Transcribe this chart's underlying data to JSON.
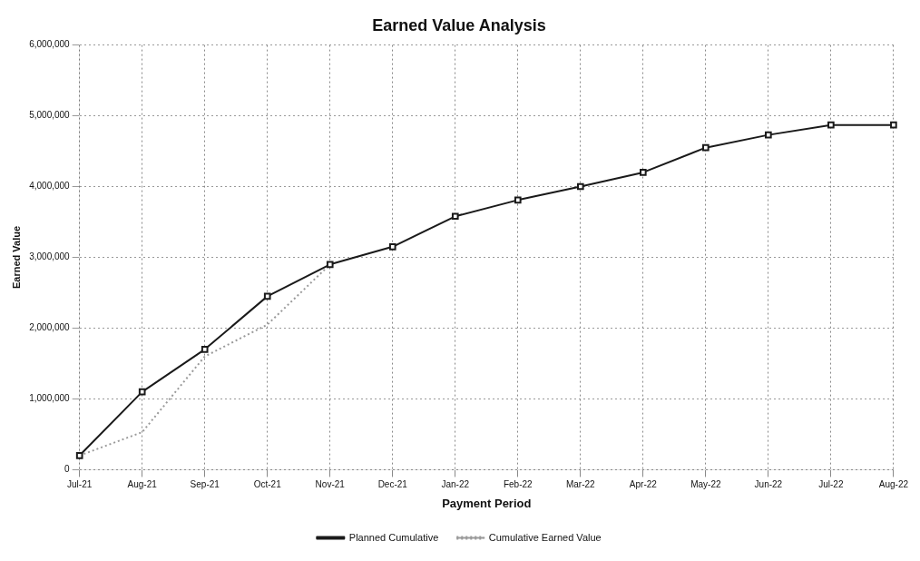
{
  "chart_data": {
    "type": "line",
    "title": "Earned Value Analysis",
    "xlabel": "Payment Period",
    "ylabel": "Earned Value",
    "categories": [
      "Jul-21",
      "Aug-21",
      "Sep-21",
      "Oct-21",
      "Nov-21",
      "Dec-21",
      "Jan-22",
      "Feb-22",
      "Mar-22",
      "Apr-22",
      "May-22",
      "Jun-22",
      "Jul-22",
      "Aug-22"
    ],
    "series": [
      {
        "name": "Planned Cumulative",
        "color": "#1a1a1a",
        "marker": "square",
        "line_style": "solid",
        "values": [
          200000,
          1100000,
          1700000,
          2450000,
          2900000,
          3150000,
          3580000,
          3810000,
          4000000,
          4200000,
          4550000,
          4730000,
          4870000,
          4870000
        ]
      },
      {
        "name": "Cumulative Earned Value",
        "color": "#9a9a9a",
        "marker": "none",
        "line_style": "dotted",
        "values": [
          200000,
          530000,
          1600000,
          2050000,
          2900000,
          null,
          null,
          null,
          null,
          null,
          null,
          null,
          null,
          null
        ]
      }
    ],
    "ylim": [
      0,
      6000000
    ],
    "yticks": [
      0,
      {
        "value": 1000000,
        "label": "1,000,000"
      },
      {
        "value": 2000000,
        "label": "2,000,000"
      },
      {
        "value": 3000000,
        "label": "3,000,000"
      },
      {
        "value": 4000000,
        "label": "4,000,000"
      },
      {
        "value": 5000000,
        "label": "5,000,000"
      },
      {
        "value": 6000000,
        "label": "6,000,000"
      }
    ],
    "grid": true,
    "legend": "bottom"
  }
}
